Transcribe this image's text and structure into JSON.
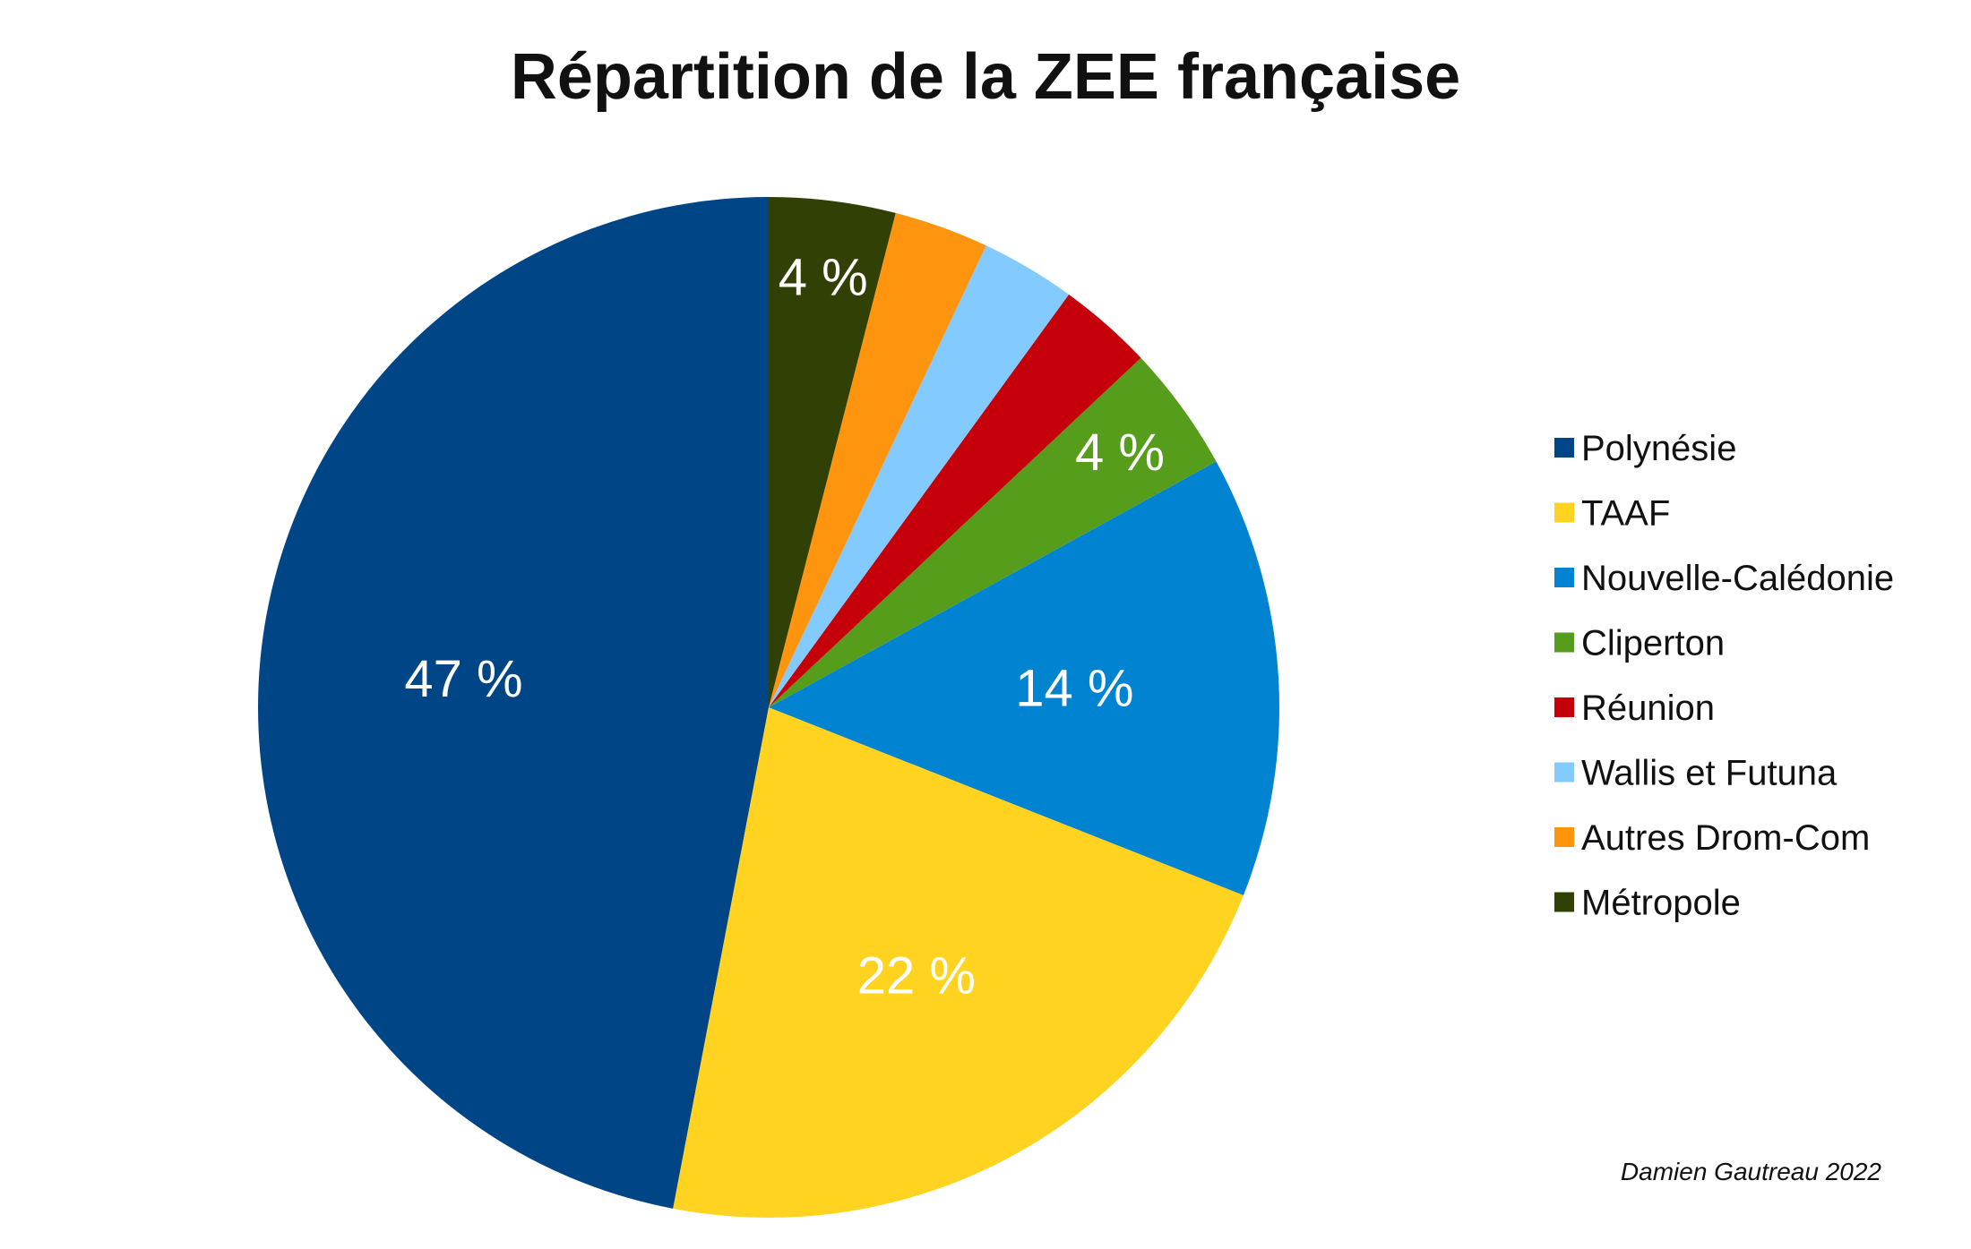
{
  "chart_data": {
    "type": "pie",
    "title": "Répartition de la ZEE française",
    "start_angle_deg": 0,
    "direction": "counterclockwise",
    "slices": [
      {
        "name": "Polynésie",
        "value": 47,
        "label": "47 %",
        "color": "#004586"
      },
      {
        "name": "TAAF",
        "value": 22,
        "label": "22 %",
        "color": "#ffd320"
      },
      {
        "name": "Nouvelle-Calédonie",
        "value": 14,
        "label": "14 %",
        "color": "#0084d1"
      },
      {
        "name": "Cliperton",
        "value": 4,
        "label": "4 %",
        "color": "#579d1c"
      },
      {
        "name": "Réunion",
        "value": 3,
        "label": "",
        "color": "#c5000b"
      },
      {
        "name": "Wallis et Futuna",
        "value": 3,
        "label": "",
        "color": "#83caff"
      },
      {
        "name": "Autres Drom-Com",
        "value": 3,
        "label": "",
        "color": "#ff950e"
      },
      {
        "name": "Métropole",
        "value": 4,
        "label": "4 %",
        "color": "#314004"
      }
    ],
    "legend_position": "right",
    "credit": "Damien Gautreau 2022"
  }
}
